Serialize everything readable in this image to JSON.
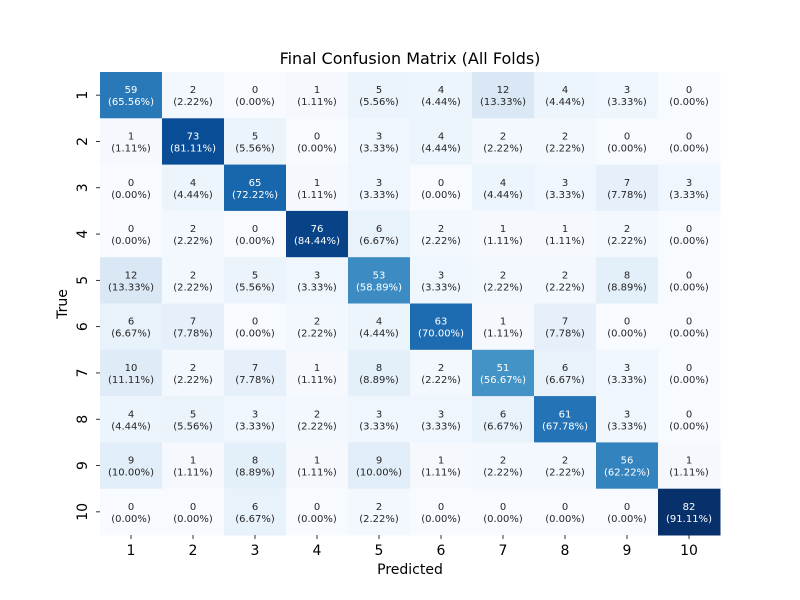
{
  "chart_data": {
    "type": "heatmap",
    "title": "Final Confusion Matrix (All Folds)",
    "xlabel": "Predicted",
    "ylabel": "True",
    "x_categories": [
      "1",
      "2",
      "3",
      "4",
      "5",
      "6",
      "7",
      "8",
      "9",
      "10"
    ],
    "y_categories": [
      "1",
      "2",
      "3",
      "4",
      "5",
      "6",
      "7",
      "8",
      "9",
      "10"
    ],
    "colormap": "Blues",
    "colorbar": false,
    "values": [
      [
        59,
        2,
        0,
        1,
        5,
        4,
        12,
        4,
        3,
        0
      ],
      [
        1,
        73,
        5,
        0,
        3,
        4,
        2,
        2,
        0,
        0
      ],
      [
        0,
        4,
        65,
        1,
        3,
        0,
        4,
        3,
        7,
        3
      ],
      [
        0,
        2,
        0,
        76,
        6,
        2,
        1,
        1,
        2,
        0
      ],
      [
        12,
        2,
        5,
        3,
        53,
        3,
        2,
        2,
        8,
        0
      ],
      [
        6,
        7,
        0,
        2,
        4,
        63,
        1,
        7,
        0,
        0
      ],
      [
        10,
        2,
        7,
        1,
        8,
        2,
        51,
        6,
        3,
        0
      ],
      [
        4,
        5,
        3,
        2,
        3,
        3,
        6,
        61,
        3,
        0
      ],
      [
        9,
        1,
        8,
        1,
        9,
        1,
        2,
        2,
        56,
        1
      ],
      [
        0,
        0,
        6,
        0,
        2,
        0,
        0,
        0,
        0,
        82
      ]
    ],
    "percentages": [
      [
        "65.56%",
        "2.22%",
        "0.00%",
        "1.11%",
        "5.56%",
        "4.44%",
        "13.33%",
        "4.44%",
        "3.33%",
        "0.00%"
      ],
      [
        "1.11%",
        "81.11%",
        "5.56%",
        "0.00%",
        "3.33%",
        "4.44%",
        "2.22%",
        "2.22%",
        "0.00%",
        "0.00%"
      ],
      [
        "0.00%",
        "4.44%",
        "72.22%",
        "1.11%",
        "3.33%",
        "0.00%",
        "4.44%",
        "3.33%",
        "7.78%",
        "3.33%"
      ],
      [
        "0.00%",
        "2.22%",
        "0.00%",
        "84.44%",
        "6.67%",
        "2.22%",
        "1.11%",
        "1.11%",
        "2.22%",
        "0.00%"
      ],
      [
        "13.33%",
        "2.22%",
        "5.56%",
        "3.33%",
        "58.89%",
        "3.33%",
        "2.22%",
        "2.22%",
        "8.89%",
        "0.00%"
      ],
      [
        "6.67%",
        "7.78%",
        "0.00%",
        "2.22%",
        "4.44%",
        "70.00%",
        "1.11%",
        "7.78%",
        "0.00%",
        "0.00%"
      ],
      [
        "11.11%",
        "2.22%",
        "7.78%",
        "1.11%",
        "8.89%",
        "2.22%",
        "56.67%",
        "6.67%",
        "3.33%",
        "0.00%"
      ],
      [
        "4.44%",
        "5.56%",
        "3.33%",
        "2.22%",
        "3.33%",
        "3.33%",
        "6.67%",
        "67.78%",
        "3.33%",
        "0.00%"
      ],
      [
        "10.00%",
        "1.11%",
        "8.89%",
        "1.11%",
        "10.00%",
        "1.11%",
        "2.22%",
        "2.22%",
        "62.22%",
        "1.11%"
      ],
      [
        "0.00%",
        "0.00%",
        "6.67%",
        "0.00%",
        "2.22%",
        "0.00%",
        "0.00%",
        "0.00%",
        "0.00%",
        "91.11%"
      ]
    ]
  }
}
